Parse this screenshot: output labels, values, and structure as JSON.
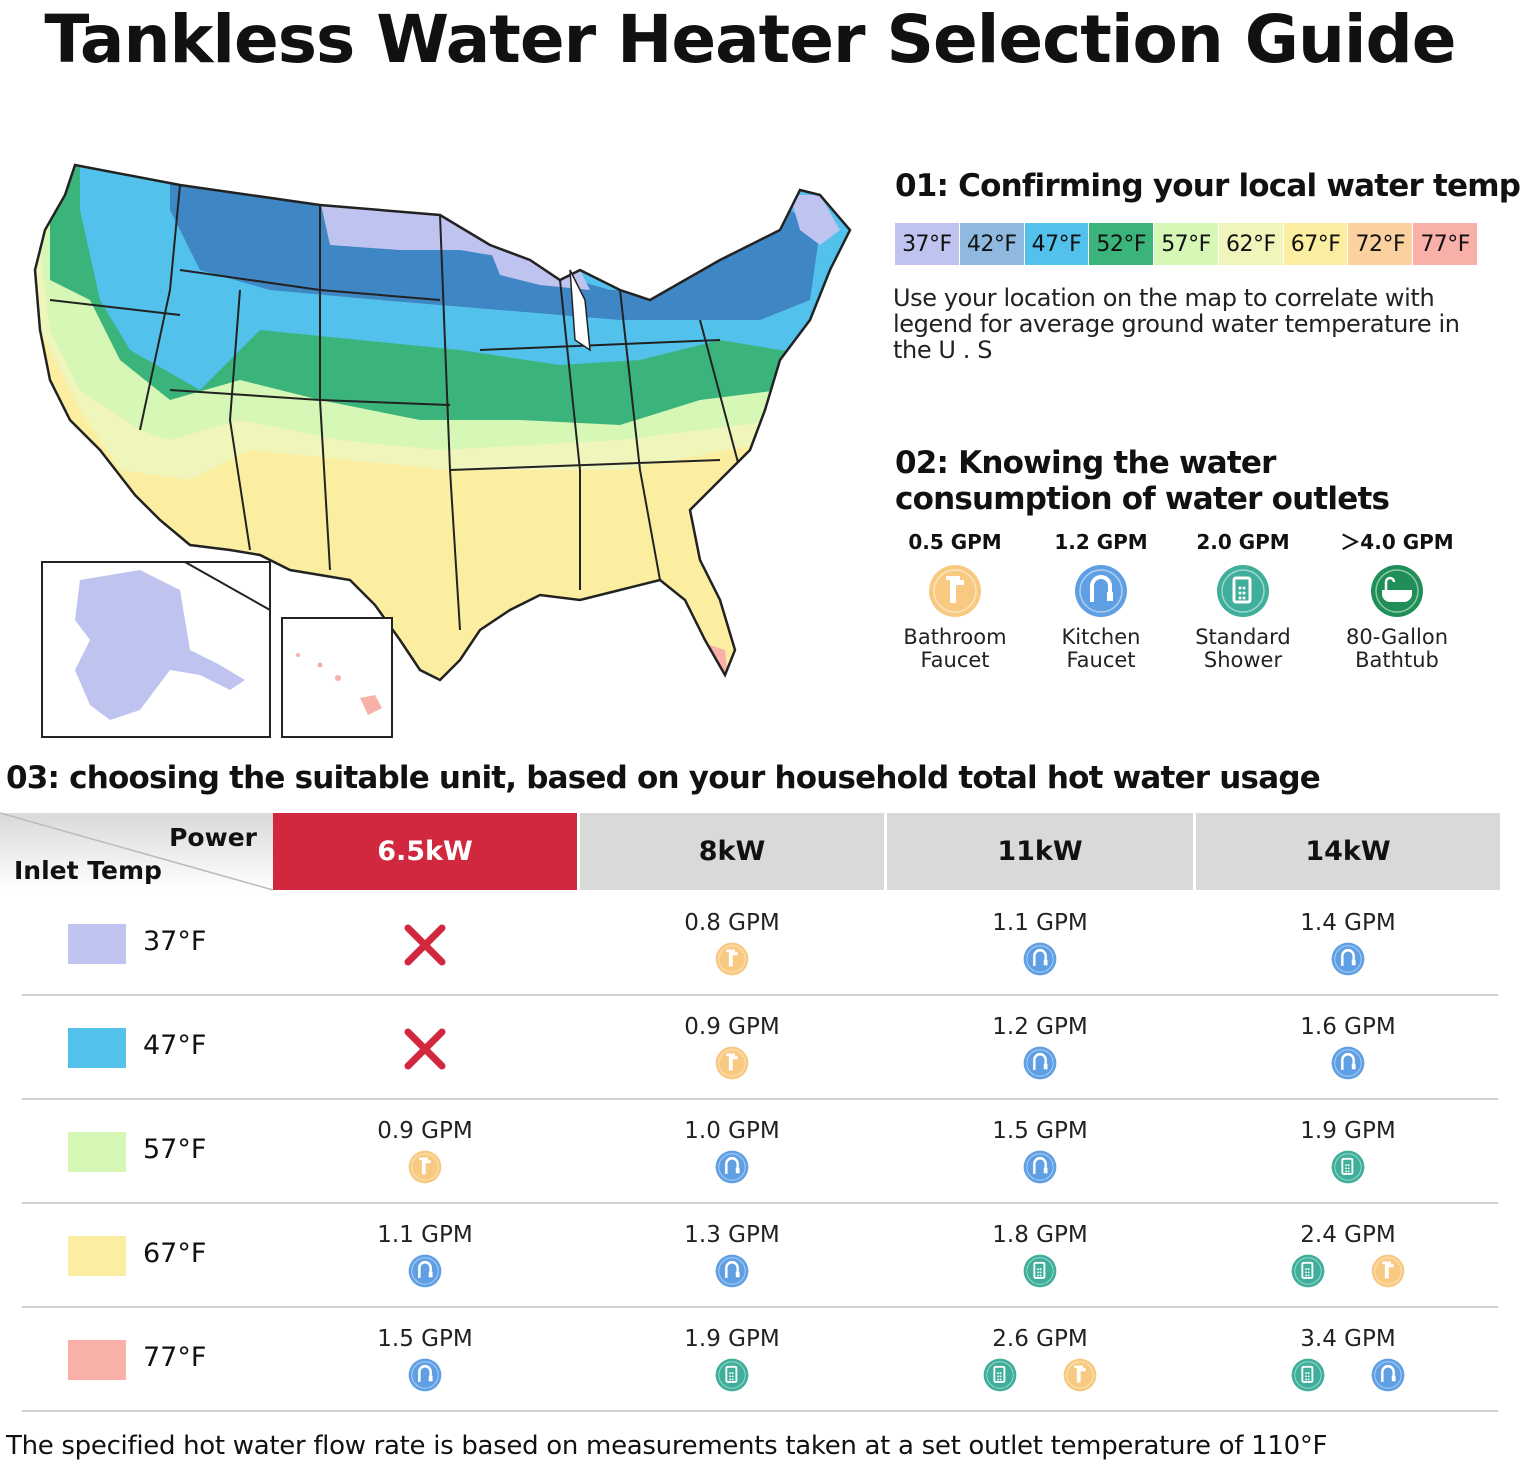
{
  "page_title": "Tankless Water Heater Selection Guide",
  "colors": {
    "t37": "#bfc3f0",
    "t42": "#8fb9df",
    "t47": "#52c1ec",
    "t52": "#3ab47b",
    "t57": "#d6f7b6",
    "t62": "#f0f6bb",
    "t67": "#fbeea0",
    "t72": "#fbd1a0",
    "t77": "#f9b0a8",
    "state_blue": "#3f86c4",
    "accent_red": "#d1273f",
    "faucet_orange": "#f8c981",
    "kitchen_blue": "#5f9fe3",
    "shower_teal": "#3fae9a",
    "bathtub_green": "#1f8f57"
  },
  "section1": {
    "heading": "01:  Confirming your local water temp",
    "legend": [
      "37°F",
      "42°F",
      "47°F",
      "52°F",
      "57°F",
      "62°F",
      "67°F",
      "72°F",
      "77°F"
    ],
    "note": "Use your location on the map to correlate with legend for average ground water temperature in the U . S"
  },
  "section2": {
    "heading": "02:  Knowing the water consumption of water outlets",
    "outlets": [
      {
        "gpm": "0.5 GPM",
        "label_line1": "Bathroom",
        "label_line2": "Faucet",
        "icon": "bathroom-faucet-icon"
      },
      {
        "gpm": "1.2 GPM",
        "label_line1": "Kitchen",
        "label_line2": "Faucet",
        "icon": "kitchen-faucet-icon"
      },
      {
        "gpm": "2.0 GPM",
        "label_line1": "Standard",
        "label_line2": "Shower",
        "icon": "shower-icon"
      },
      {
        "gpm": "＞4.0 GPM",
        "label_line1": "80-Gallon",
        "label_line2": "Bathtub",
        "icon": "bathtub-icon"
      }
    ]
  },
  "section3": {
    "heading": "03:  choosing the suitable unit, based on your household total hot water usage",
    "header": {
      "power_label": "Power",
      "inlet_label": "Inlet Temp",
      "columns": [
        "6.5kW",
        "8kW",
        "11kW",
        "14kW"
      ],
      "active_column": 0
    },
    "rows": [
      {
        "temp": "37°F",
        "swatch": "t37",
        "cells": [
          {
            "value": "",
            "icons": [
              "x"
            ]
          },
          {
            "value": "0.8 GPM",
            "icons": [
              "faucet"
            ]
          },
          {
            "value": "1.1 GPM",
            "icons": [
              "kitchen"
            ]
          },
          {
            "value": "1.4 GPM",
            "icons": [
              "kitchen"
            ]
          }
        ]
      },
      {
        "temp": "47°F",
        "swatch": "t47",
        "cells": [
          {
            "value": "",
            "icons": [
              "x"
            ]
          },
          {
            "value": "0.9 GPM",
            "icons": [
              "faucet"
            ]
          },
          {
            "value": "1.2 GPM",
            "icons": [
              "kitchen"
            ]
          },
          {
            "value": "1.6 GPM",
            "icons": [
              "kitchen"
            ]
          }
        ]
      },
      {
        "temp": "57°F",
        "swatch": "t57",
        "cells": [
          {
            "value": "0.9 GPM",
            "icons": [
              "faucet"
            ]
          },
          {
            "value": "1.0 GPM",
            "icons": [
              "kitchen"
            ]
          },
          {
            "value": "1.5 GPM",
            "icons": [
              "kitchen"
            ]
          },
          {
            "value": "1.9 GPM",
            "icons": [
              "shower"
            ]
          }
        ]
      },
      {
        "temp": "67°F",
        "swatch": "t67",
        "cells": [
          {
            "value": "1.1 GPM",
            "icons": [
              "kitchen"
            ]
          },
          {
            "value": "1.3 GPM",
            "icons": [
              "kitchen"
            ]
          },
          {
            "value": "1.8 GPM",
            "icons": [
              "shower"
            ]
          },
          {
            "value": "2.4 GPM",
            "icons": [
              "shower",
              "faucet"
            ]
          }
        ]
      },
      {
        "temp": "77°F",
        "swatch": "t77",
        "cells": [
          {
            "value": "1.5 GPM",
            "icons": [
              "kitchen"
            ]
          },
          {
            "value": "1.9 GPM",
            "icons": [
              "shower"
            ]
          },
          {
            "value": "2.6 GPM",
            "icons": [
              "shower",
              "faucet"
            ]
          },
          {
            "value": "3.4 GPM",
            "icons": [
              "shower",
              "kitchen"
            ]
          }
        ]
      }
    ]
  },
  "footnote": "The specified hot water flow rate is based on measurements taken at a set outlet temperature of 110°F"
}
